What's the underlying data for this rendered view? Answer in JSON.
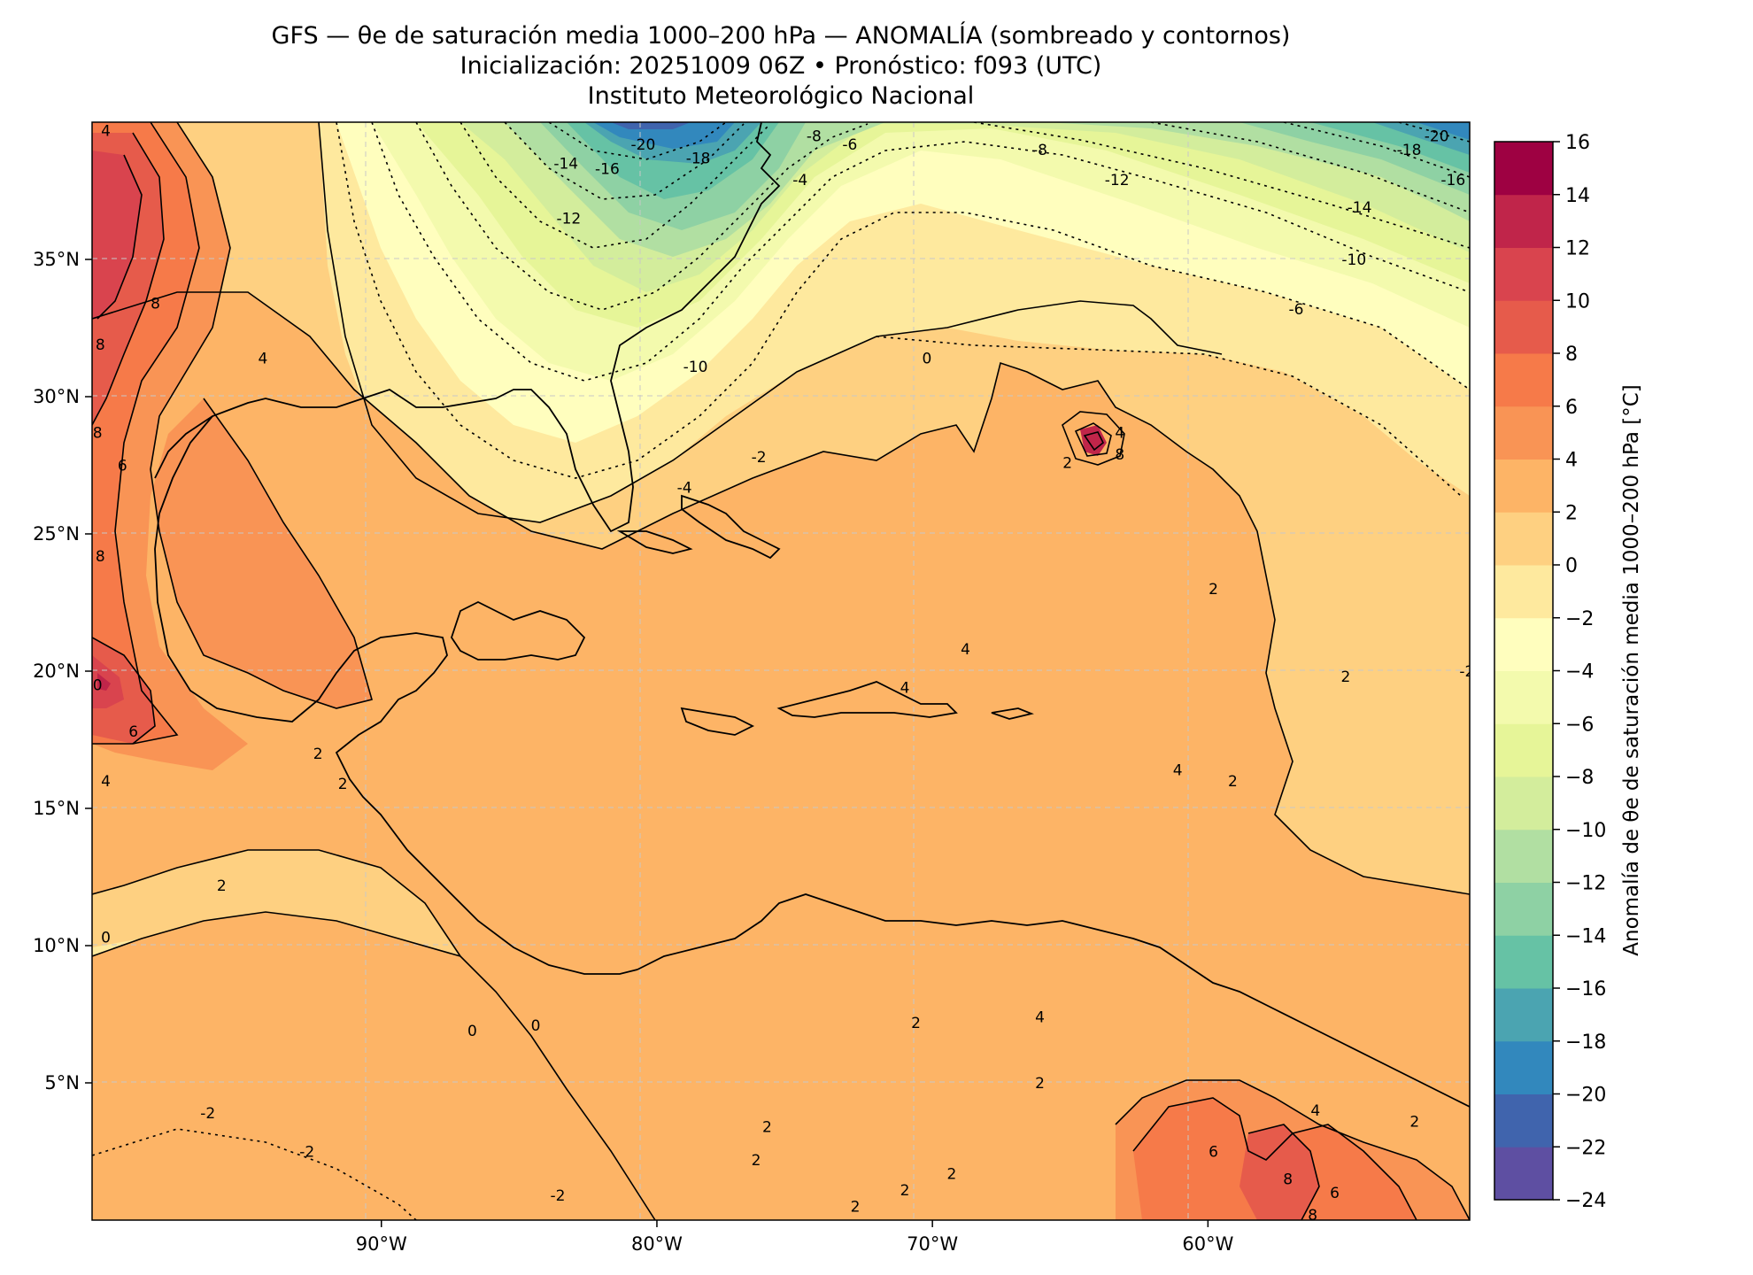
{
  "title": {
    "line1": "GFS — θe de saturación media 1000–200 hPa — ANOMALÍA (sombreado y contornos)",
    "line2": "Inicialización: 20251009 06Z   •   Pronóstico: f093 (UTC)",
    "line3": "Instituto Meteorológico Nacional"
  },
  "map": {
    "lon_range": [
      -100.5,
      -50.5
    ],
    "lat_range": [
      0,
      40
    ],
    "lon_ticks": [
      -90,
      -80,
      -70,
      -60
    ],
    "lon_tick_labels": [
      "90°W",
      "80°W",
      "70°W",
      "60°W"
    ],
    "lat_ticks": [
      35,
      30,
      25,
      20,
      15,
      10,
      5
    ],
    "lat_tick_labels": [
      "35°N",
      "30°N",
      "25°N",
      "20°N",
      "15°N",
      "10°N",
      "5°N"
    ],
    "grid": "dashed light gray",
    "contour_labels": [
      {
        "text": "-20",
        "lon": -80.5,
        "lat": 39.2
      },
      {
        "text": "-18",
        "lon": -78.5,
        "lat": 38.7
      },
      {
        "text": "-16",
        "lon": -81.8,
        "lat": 38.3
      },
      {
        "text": "-14",
        "lon": -83.3,
        "lat": 38.5
      },
      {
        "text": "-12",
        "lon": -83.2,
        "lat": 36.5
      },
      {
        "text": "-10",
        "lon": -78.6,
        "lat": 31.1
      },
      {
        "text": "-8",
        "lon": -74.3,
        "lat": 39.5
      },
      {
        "text": "-6",
        "lon": -73.0,
        "lat": 39.2
      },
      {
        "text": "-4",
        "lon": -74.8,
        "lat": 37.9
      },
      {
        "text": "-4",
        "lon": -79.0,
        "lat": 26.7
      },
      {
        "text": "-2",
        "lon": -76.3,
        "lat": 27.8
      },
      {
        "text": "0",
        "lon": -70.2,
        "lat": 31.4
      },
      {
        "text": "-8",
        "lon": -66.1,
        "lat": 39.0
      },
      {
        "text": "-12",
        "lon": -63.3,
        "lat": 37.9
      },
      {
        "text": "-14",
        "lon": -54.5,
        "lat": 36.9
      },
      {
        "text": "-10",
        "lon": -54.7,
        "lat": 35.0
      },
      {
        "text": "-6",
        "lon": -56.8,
        "lat": 33.2
      },
      {
        "text": "-18",
        "lon": -52.7,
        "lat": 39.0
      },
      {
        "text": "-20",
        "lon": -51.7,
        "lat": 39.5
      },
      {
        "text": "-16",
        "lon": -51.1,
        "lat": 37.9
      },
      {
        "text": "4",
        "lon": -100.0,
        "lat": 39.7
      },
      {
        "text": "8",
        "lon": -98.2,
        "lat": 33.4
      },
      {
        "text": "8",
        "lon": -100.2,
        "lat": 31.9
      },
      {
        "text": "4",
        "lon": -94.3,
        "lat": 31.4
      },
      {
        "text": "8",
        "lon": -100.3,
        "lat": 28.7
      },
      {
        "text": "6",
        "lon": -99.4,
        "lat": 27.5
      },
      {
        "text": "8",
        "lon": -100.2,
        "lat": 24.2
      },
      {
        "text": "0",
        "lon": -100.3,
        "lat": 19.5
      },
      {
        "text": "6",
        "lon": -99.0,
        "lat": 17.8
      },
      {
        "text": "4",
        "lon": -100.0,
        "lat": 16.0
      },
      {
        "text": "2",
        "lon": -92.3,
        "lat": 17.0
      },
      {
        "text": "2",
        "lon": -91.4,
        "lat": 15.9
      },
      {
        "text": "2",
        "lon": -95.8,
        "lat": 12.2
      },
      {
        "text": "0",
        "lon": -100.0,
        "lat": 10.3
      },
      {
        "text": "0",
        "lon": -86.7,
        "lat": 6.9
      },
      {
        "text": "0",
        "lon": -84.4,
        "lat": 7.1
      },
      {
        "text": "-2",
        "lon": -96.3,
        "lat": 3.9
      },
      {
        "text": "-2",
        "lon": -92.7,
        "lat": 2.5
      },
      {
        "text": "-2",
        "lon": -83.6,
        "lat": 0.9
      },
      {
        "text": "2",
        "lon": -76.0,
        "lat": 3.4
      },
      {
        "text": "2",
        "lon": -76.4,
        "lat": 2.2
      },
      {
        "text": "2",
        "lon": -72.8,
        "lat": 0.5
      },
      {
        "text": "2",
        "lon": -71.0,
        "lat": 1.1
      },
      {
        "text": "2",
        "lon": -69.3,
        "lat": 1.7
      },
      {
        "text": "2",
        "lon": -70.6,
        "lat": 7.2
      },
      {
        "text": "2",
        "lon": -66.1,
        "lat": 5.0
      },
      {
        "text": "4",
        "lon": -66.1,
        "lat": 7.4
      },
      {
        "text": "4",
        "lon": -68.8,
        "lat": 20.8
      },
      {
        "text": "4",
        "lon": -71.0,
        "lat": 19.4
      },
      {
        "text": "2",
        "lon": -65.1,
        "lat": 27.6
      },
      {
        "text": "4",
        "lon": -63.2,
        "lat": 28.7
      },
      {
        "text": "8",
        "lon": -63.2,
        "lat": 27.9
      },
      {
        "text": "2",
        "lon": -59.8,
        "lat": 23.0
      },
      {
        "text": "4",
        "lon": -61.1,
        "lat": 16.4
      },
      {
        "text": "2",
        "lon": -59.1,
        "lat": 16.0
      },
      {
        "text": "2",
        "lon": -55.0,
        "lat": 19.8
      },
      {
        "text": "4",
        "lon": -56.1,
        "lat": 4.0
      },
      {
        "text": "2",
        "lon": -52.5,
        "lat": 3.6
      },
      {
        "text": "6",
        "lon": -59.8,
        "lat": 2.5
      },
      {
        "text": "8",
        "lon": -57.1,
        "lat": 1.5
      },
      {
        "text": "6",
        "lon": -55.4,
        "lat": 1.0
      },
      {
        "text": "8",
        "lon": -56.2,
        "lat": 0.2
      },
      {
        "text": "-2",
        "lon": -50.6,
        "lat": 20.0
      }
    ]
  },
  "colorbar": {
    "label": "Anomalía de θe de saturación media 1000–200 hPa [°C]",
    "levels": [
      -24,
      -22,
      -20,
      -18,
      -16,
      -14,
      -12,
      -10,
      -8,
      -6,
      -4,
      -2,
      0,
      2,
      4,
      6,
      8,
      10,
      12,
      14,
      16
    ],
    "tick_labels": [
      "16",
      "14",
      "12",
      "10",
      "8",
      "6",
      "4",
      "2",
      "0",
      "−2",
      "−4",
      "−6",
      "−8",
      "−10",
      "−12",
      "−14",
      "−16",
      "−18",
      "−20",
      "−22",
      "−24"
    ],
    "colors": [
      "#5e4fa2",
      "#4064ad",
      "#3288bd",
      "#4ba4b1",
      "#66c2a5",
      "#8ed1a4",
      "#b1dfa2",
      "#d3ed9c",
      "#e6f598",
      "#f3faad",
      "#fffebe",
      "#fee99e",
      "#fed081",
      "#fdb466",
      "#f99455",
      "#f67a49",
      "#e65b4b",
      "#d9444e",
      "#c0254a",
      "#9e0142"
    ]
  }
}
